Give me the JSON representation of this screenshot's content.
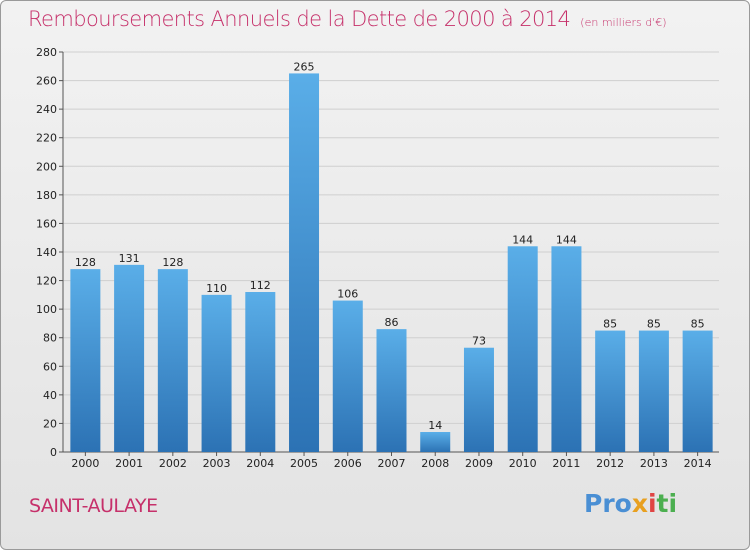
{
  "chart_data": {
    "type": "bar",
    "title": "Remboursements Annuels de la Dette de 2000 à 2014",
    "unit": "(en milliers d'€)",
    "categories": [
      "2000",
      "2001",
      "2002",
      "2003",
      "2004",
      "2005",
      "2006",
      "2007",
      "2008",
      "2009",
      "2010",
      "2011",
      "2012",
      "2013",
      "2014"
    ],
    "values": [
      128,
      131,
      128,
      110,
      112,
      265,
      106,
      86,
      14,
      73,
      144,
      144,
      85,
      85,
      85
    ],
    "ylim": [
      0,
      280
    ],
    "yticks": [
      0,
      20,
      40,
      60,
      80,
      100,
      120,
      140,
      160,
      180,
      200,
      220,
      240,
      260,
      280
    ],
    "grid": true,
    "bar_color_top": "#5aaee8",
    "bar_color_bottom": "#2c72b4"
  },
  "commune": "SAINT-AULAYE",
  "logo": {
    "p1": "Pro",
    "p2": "x",
    "p3": "i",
    "p4": "ti"
  }
}
